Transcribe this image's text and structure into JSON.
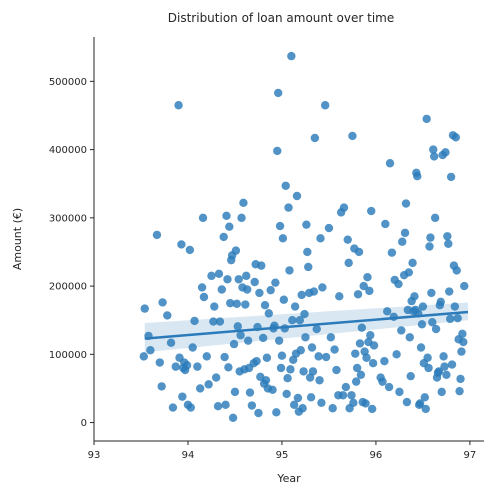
{
  "chart_data": {
    "type": "scatter",
    "title": "Distribution of loan amount over time",
    "xlabel": "Year",
    "ylabel": "Amount (€)",
    "xlim": [
      93,
      97.15
    ],
    "ylim": [
      -27000,
      565000
    ],
    "xticks": [
      "93",
      "94",
      "95",
      "96",
      "97"
    ],
    "yticks": [
      "0",
      "100000",
      "200000",
      "300000",
      "400000",
      "500000"
    ],
    "xtick_values": [
      93,
      94,
      95,
      96,
      97
    ],
    "ytick_values": [
      0,
      100000,
      200000,
      300000,
      400000,
      500000
    ],
    "grid": false,
    "color": "#2b7bba",
    "regression": {
      "x": [
        93.54,
        96.98
      ],
      "y": [
        123000,
        162000
      ],
      "ci_lower": [
        103000,
        150000
      ],
      "ci_upper": [
        146000,
        176000
      ]
    },
    "points": [
      [
        93.53,
        97000
      ],
      [
        93.54,
        167000
      ],
      [
        93.58,
        127000
      ],
      [
        93.6,
        106000
      ],
      [
        93.67,
        275000
      ],
      [
        93.7,
        88000
      ],
      [
        93.72,
        53000
      ],
      [
        93.73,
        176000
      ],
      [
        93.78,
        157000
      ],
      [
        93.82,
        117000
      ],
      [
        93.84,
        22000
      ],
      [
        93.87,
        82000
      ],
      [
        93.9,
        465000
      ],
      [
        93.91,
        95000
      ],
      [
        93.93,
        261000
      ],
      [
        93.94,
        38000
      ],
      [
        93.95,
        80000
      ],
      [
        93.96,
        88000
      ],
      [
        93.97,
        77000
      ],
      [
        93.99,
        84000
      ],
      [
        94.0,
        26000
      ],
      [
        94.02,
        253000
      ],
      [
        94.03,
        22000
      ],
      [
        94.05,
        110000
      ],
      [
        94.07,
        149000
      ],
      [
        94.1,
        82000
      ],
      [
        94.13,
        50000
      ],
      [
        94.15,
        198000
      ],
      [
        94.16,
        300000
      ],
      [
        94.17,
        184000
      ],
      [
        94.2,
        97000
      ],
      [
        94.22,
        56000
      ],
      [
        94.25,
        215000
      ],
      [
        94.27,
        148000
      ],
      [
        94.28,
        170000
      ],
      [
        94.3,
        66000
      ],
      [
        94.32,
        24000
      ],
      [
        94.33,
        218000
      ],
      [
        94.34,
        148000
      ],
      [
        94.36,
        195000
      ],
      [
        94.38,
        272000
      ],
      [
        94.39,
        96000
      ],
      [
        94.4,
        26000
      ],
      [
        94.41,
        303000
      ],
      [
        94.42,
        210000
      ],
      [
        94.43,
        81000
      ],
      [
        94.44,
        287000
      ],
      [
        94.45,
        175000
      ],
      [
        94.46,
        238000
      ],
      [
        94.47,
        245000
      ],
      [
        94.48,
        7000
      ],
      [
        94.49,
        115000
      ],
      [
        94.5,
        45000
      ],
      [
        94.51,
        252000
      ],
      [
        94.52,
        174000
      ],
      [
        94.53,
        141000
      ],
      [
        94.54,
        210000
      ],
      [
        94.55,
        75000
      ],
      [
        94.56,
        128000
      ],
      [
        94.57,
        300000
      ],
      [
        94.58,
        198000
      ],
      [
        94.59,
        322000
      ],
      [
        94.6,
        78000
      ],
      [
        94.61,
        173000
      ],
      [
        94.62,
        215000
      ],
      [
        94.63,
        195000
      ],
      [
        94.64,
        120000
      ],
      [
        94.65,
        80000
      ],
      [
        94.66,
        44000
      ],
      [
        94.68,
        25000
      ],
      [
        94.7,
        87000
      ],
      [
        94.71,
        206000
      ],
      [
        94.72,
        232000
      ],
      [
        94.73,
        90000
      ],
      [
        94.74,
        140000
      ],
      [
        94.75,
        14000
      ],
      [
        94.76,
        190000
      ],
      [
        94.77,
        67000
      ],
      [
        94.78,
        230000
      ],
      [
        94.8,
        124000
      ],
      [
        94.81,
        57000
      ],
      [
        94.82,
        172000
      ],
      [
        94.83,
        62000
      ],
      [
        94.84,
        95000
      ],
      [
        94.85,
        50000
      ],
      [
        94.86,
        160000
      ],
      [
        94.88,
        194000
      ],
      [
        94.9,
        48000
      ],
      [
        94.91,
        138000
      ],
      [
        94.92,
        142000
      ],
      [
        94.93,
        205000
      ],
      [
        94.94,
        15000
      ],
      [
        94.95,
        398000
      ],
      [
        94.96,
        483000
      ],
      [
        94.97,
        120000
      ],
      [
        94.98,
        288000
      ],
      [
        94.99,
        80000
      ],
      [
        95.0,
        98000
      ],
      [
        95.01,
        270000
      ],
      [
        95.02,
        180000
      ],
      [
        95.03,
        138000
      ],
      [
        95.04,
        347000
      ],
      [
        95.05,
        42000
      ],
      [
        95.06,
        65000
      ],
      [
        95.07,
        315000
      ],
      [
        95.08,
        223000
      ],
      [
        95.09,
        78000
      ],
      [
        95.1,
        537000
      ],
      [
        95.11,
        150000
      ],
      [
        95.12,
        92000
      ],
      [
        95.13,
        26000
      ],
      [
        95.14,
        170000
      ],
      [
        95.15,
        101000
      ],
      [
        95.16,
        332000
      ],
      [
        95.17,
        36000
      ],
      [
        95.18,
        16000
      ],
      [
        95.19,
        150000
      ],
      [
        95.2,
        106000
      ],
      [
        95.21,
        187000
      ],
      [
        95.22,
        21000
      ],
      [
        95.23,
        75000
      ],
      [
        95.24,
        159000
      ],
      [
        95.25,
        125000
      ],
      [
        95.26,
        290000
      ],
      [
        95.27,
        250000
      ],
      [
        95.28,
        228000
      ],
      [
        95.29,
        190000
      ],
      [
        95.3,
        66000
      ],
      [
        95.31,
        37000
      ],
      [
        95.32,
        110000
      ],
      [
        95.33,
        75000
      ],
      [
        95.34,
        192000
      ],
      [
        95.35,
        417000
      ],
      [
        95.37,
        137000
      ],
      [
        95.39,
        97000
      ],
      [
        95.4,
        62000
      ],
      [
        95.41,
        270000
      ],
      [
        95.42,
        29000
      ],
      [
        95.43,
        198000
      ],
      [
        95.46,
        465000
      ],
      [
        95.47,
        96000
      ],
      [
        95.5,
        285000
      ],
      [
        95.52,
        125000
      ],
      [
        95.54,
        21000
      ],
      [
        95.56,
        107000
      ],
      [
        95.58,
        77000
      ],
      [
        95.6,
        40000
      ],
      [
        95.61,
        185000
      ],
      [
        95.63,
        308000
      ],
      [
        95.65,
        40000
      ],
      [
        95.66,
        315000
      ],
      [
        95.68,
        52000
      ],
      [
        95.7,
        268000
      ],
      [
        95.71,
        234000
      ],
      [
        95.72,
        21000
      ],
      [
        95.74,
        40000
      ],
      [
        95.75,
        420000
      ],
      [
        95.76,
        29000
      ],
      [
        95.77,
        255000
      ],
      [
        95.78,
        101000
      ],
      [
        95.79,
        60000
      ],
      [
        95.8,
        80000
      ],
      [
        95.81,
        188000
      ],
      [
        95.82,
        250000
      ],
      [
        95.83,
        116000
      ],
      [
        95.84,
        70000
      ],
      [
        95.85,
        139000
      ],
      [
        95.86,
        30000
      ],
      [
        95.87,
        200000
      ],
      [
        95.88,
        104000
      ],
      [
        95.89,
        28000
      ],
      [
        95.9,
        95000
      ],
      [
        95.91,
        213000
      ],
      [
        95.92,
        118000
      ],
      [
        95.93,
        193000
      ],
      [
        95.94,
        128000
      ],
      [
        95.95,
        310000
      ],
      [
        95.96,
        20000
      ],
      [
        95.97,
        87000
      ],
      [
        95.98,
        113000
      ],
      [
        96.05,
        66000
      ],
      [
        96.07,
        60000
      ],
      [
        96.09,
        90000
      ],
      [
        96.1,
        291000
      ],
      [
        96.12,
        163000
      ],
      [
        96.14,
        52000
      ],
      [
        96.15,
        380000
      ],
      [
        96.17,
        249000
      ],
      [
        96.19,
        155000
      ],
      [
        96.2,
        209000
      ],
      [
        96.22,
        100000
      ],
      [
        96.24,
        203000
      ],
      [
        96.25,
        45000
      ],
      [
        96.27,
        135000
      ],
      [
        96.28,
        265000
      ],
      [
        96.3,
        216000
      ],
      [
        96.31,
        278000
      ],
      [
        96.32,
        321000
      ],
      [
        96.33,
        30000
      ],
      [
        96.34,
        165000
      ],
      [
        96.35,
        220000
      ],
      [
        96.36,
        125000
      ],
      [
        96.37,
        68000
      ],
      [
        96.38,
        178000
      ],
      [
        96.39,
        234000
      ],
      [
        96.4,
        163000
      ],
      [
        96.41,
        185000
      ],
      [
        96.42,
        165000
      ],
      [
        96.43,
        366000
      ],
      [
        96.44,
        361000
      ],
      [
        96.45,
        160000
      ],
      [
        96.46,
        26000
      ],
      [
        96.47,
        28000
      ],
      [
        96.48,
        110000
      ],
      [
        96.49,
        144000
      ],
      [
        96.5,
        170000
      ],
      [
        96.51,
        87000
      ],
      [
        96.52,
        37000
      ],
      [
        96.53,
        20000
      ],
      [
        96.54,
        445000
      ],
      [
        96.55,
        95000
      ],
      [
        96.56,
        80000
      ],
      [
        96.57,
        258000
      ],
      [
        96.58,
        271000
      ],
      [
        96.59,
        190000
      ],
      [
        96.6,
        147000
      ],
      [
        96.61,
        400000
      ],
      [
        96.62,
        390000
      ],
      [
        96.63,
        300000
      ],
      [
        96.64,
        137000
      ],
      [
        96.65,
        66000
      ],
      [
        96.66,
        73000
      ],
      [
        96.67,
        75000
      ],
      [
        96.68,
        172000
      ],
      [
        96.69,
        177000
      ],
      [
        96.7,
        45000
      ],
      [
        96.71,
        392000
      ],
      [
        96.72,
        97000
      ],
      [
        96.73,
        82000
      ],
      [
        96.74,
        396000
      ],
      [
        96.75,
        70000
      ],
      [
        96.76,
        273000
      ],
      [
        96.77,
        262000
      ],
      [
        96.78,
        192000
      ],
      [
        96.79,
        152000
      ],
      [
        96.8,
        360000
      ],
      [
        96.81,
        85000
      ],
      [
        96.82,
        421000
      ],
      [
        96.83,
        230000
      ],
      [
        96.84,
        170000
      ],
      [
        96.85,
        418000
      ],
      [
        96.86,
        223000
      ],
      [
        96.87,
        153000
      ],
      [
        96.88,
        122000
      ],
      [
        96.89,
        46000
      ],
      [
        96.9,
        64000
      ],
      [
        96.91,
        104000
      ],
      [
        96.92,
        130000
      ],
      [
        96.93,
        118000
      ],
      [
        96.94,
        200000
      ]
    ]
  }
}
